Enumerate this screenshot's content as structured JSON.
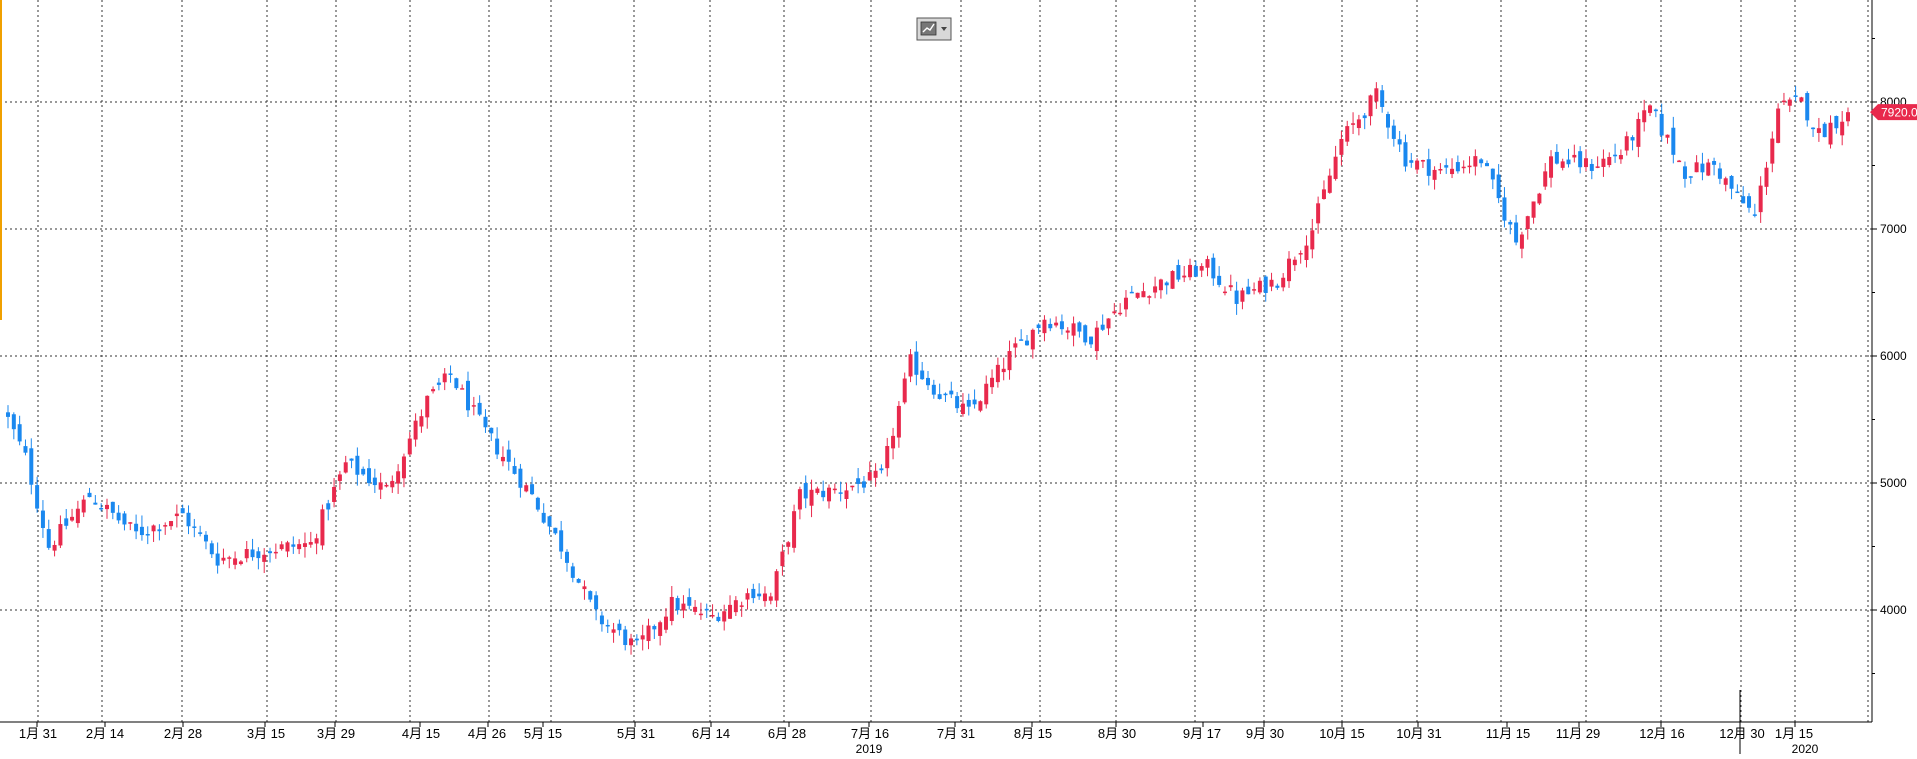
{
  "chart_data": {
    "type": "candlestick",
    "title": "",
    "xlabel": "",
    "ylabel": "",
    "ylim": [
      3400,
      8600
    ],
    "y_ticks": [
      "4000",
      "5000",
      "6000",
      "7000",
      "8000"
    ],
    "y_tick_values": [
      4000,
      5000,
      6000,
      7000,
      8000
    ],
    "x_tick_labels": [
      "1月 31",
      "2月 14",
      "2月 28",
      "3月 15",
      "3月 29",
      "4月 15",
      "4月 26",
      "5月 15",
      "5月 31",
      "6月 14",
      "6月 28",
      "7月 16",
      "7月 31",
      "8月 15",
      "8月 30",
      "9月 17",
      "9月 30",
      "10月 15",
      "10月 31",
      "11月 15",
      "11月 29",
      "12月 16",
      "12月 30",
      "1月 15"
    ],
    "year_labels": [
      "2019",
      "2020"
    ],
    "last_price_label": "7920.0",
    "last_price": 7920,
    "grid": true,
    "colors": {
      "up": "#e8294c",
      "down": "#1a88ef",
      "label_bg": "#e8294c",
      "grid": "#333333",
      "left_bar": "#f0a000"
    },
    "anchors": [
      {
        "i": 0,
        "c": 5500
      },
      {
        "i": 3,
        "c": 5200
      },
      {
        "i": 7,
        "c": 4500
      },
      {
        "i": 14,
        "c": 4900
      },
      {
        "i": 22,
        "c": 4600
      },
      {
        "i": 30,
        "c": 4750
      },
      {
        "i": 36,
        "c": 4400
      },
      {
        "i": 45,
        "c": 4480
      },
      {
        "i": 52,
        "c": 4520
      },
      {
        "i": 58,
        "c": 5150
      },
      {
        "i": 65,
        "c": 4950
      },
      {
        "i": 72,
        "c": 5650
      },
      {
        "i": 76,
        "c": 5850
      },
      {
        "i": 82,
        "c": 5400
      },
      {
        "i": 90,
        "c": 4900
      },
      {
        "i": 95,
        "c": 4500
      },
      {
        "i": 101,
        "c": 3950
      },
      {
        "i": 108,
        "c": 3700
      },
      {
        "i": 114,
        "c": 4050
      },
      {
        "i": 121,
        "c": 3950
      },
      {
        "i": 128,
        "c": 4150
      },
      {
        "i": 131,
        "c": 4100
      },
      {
        "i": 136,
        "c": 4900
      },
      {
        "i": 143,
        "c": 4950
      },
      {
        "i": 150,
        "c": 5050
      },
      {
        "i": 155,
        "c": 5950
      },
      {
        "i": 160,
        "c": 5700
      },
      {
        "i": 165,
        "c": 5550
      },
      {
        "i": 172,
        "c": 6000
      },
      {
        "i": 178,
        "c": 6300
      },
      {
        "i": 186,
        "c": 6150
      },
      {
        "i": 192,
        "c": 6450
      },
      {
        "i": 199,
        "c": 6600
      },
      {
        "i": 206,
        "c": 6700
      },
      {
        "i": 211,
        "c": 6450
      },
      {
        "i": 218,
        "c": 6600
      },
      {
        "i": 224,
        "c": 7000
      },
      {
        "i": 229,
        "c": 7700
      },
      {
        "i": 235,
        "c": 8050
      },
      {
        "i": 240,
        "c": 7550
      },
      {
        "i": 246,
        "c": 7450
      },
      {
        "i": 253,
        "c": 7550
      },
      {
        "i": 259,
        "c": 6900
      },
      {
        "i": 265,
        "c": 7550
      },
      {
        "i": 272,
        "c": 7500
      },
      {
        "i": 277,
        "c": 7600
      },
      {
        "i": 282,
        "c": 7950
      },
      {
        "i": 288,
        "c": 7450
      },
      {
        "i": 293,
        "c": 7500
      },
      {
        "i": 297,
        "c": 7250
      },
      {
        "i": 300,
        "c": 7100
      },
      {
        "i": 304,
        "c": 7950
      },
      {
        "i": 308,
        "c": 8000
      },
      {
        "i": 311,
        "c": 7750
      },
      {
        "i": 316,
        "c": 7920
      }
    ]
  }
}
